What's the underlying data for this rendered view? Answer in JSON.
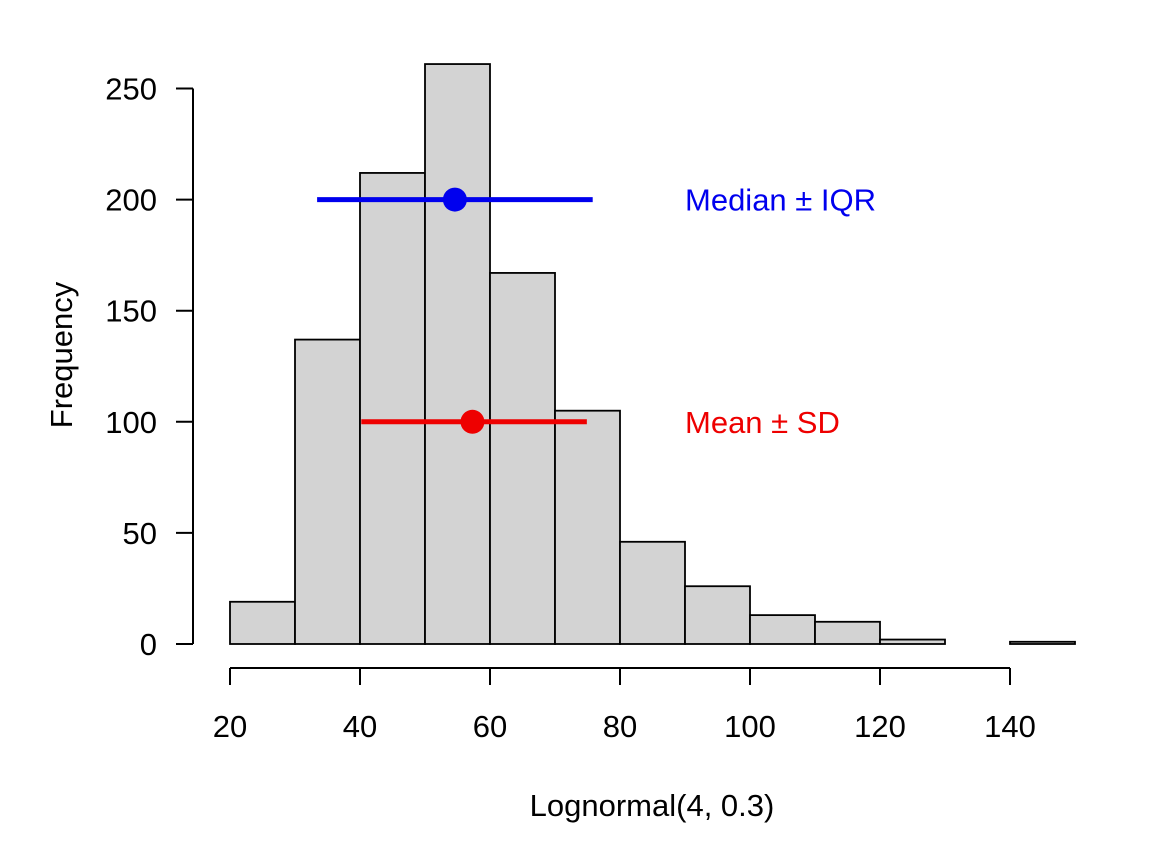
{
  "chart_data": {
    "type": "bar",
    "subtype": "histogram",
    "xlabel": "Lognormal(4, 0.3)",
    "ylabel": "Frequency",
    "xlim": [
      20,
      150
    ],
    "ylim": [
      0,
      260
    ],
    "x_ticks": [
      "20",
      "40",
      "60",
      "80",
      "100",
      "120",
      "140"
    ],
    "y_ticks": [
      "0",
      "50",
      "100",
      "150",
      "200",
      "250"
    ],
    "bin_edges": [
      20,
      30,
      40,
      50,
      60,
      70,
      80,
      90,
      100,
      110,
      120,
      130,
      140,
      150
    ],
    "counts": [
      19,
      137,
      212,
      261,
      167,
      105,
      46,
      26,
      13,
      10,
      2,
      0,
      1
    ],
    "bar_color": "#d3d3d3",
    "annotations": [
      {
        "label": "Median ± IQR",
        "center": 54.6,
        "low": 33.4,
        "high": 75.8,
        "y": 200,
        "color": "#0000ee"
      },
      {
        "label": "Mean ± SD",
        "center": 57.3,
        "low": 40.2,
        "high": 74.9,
        "y": 100,
        "color": "#ee0000"
      }
    ],
    "grid": false,
    "legend": "none"
  }
}
